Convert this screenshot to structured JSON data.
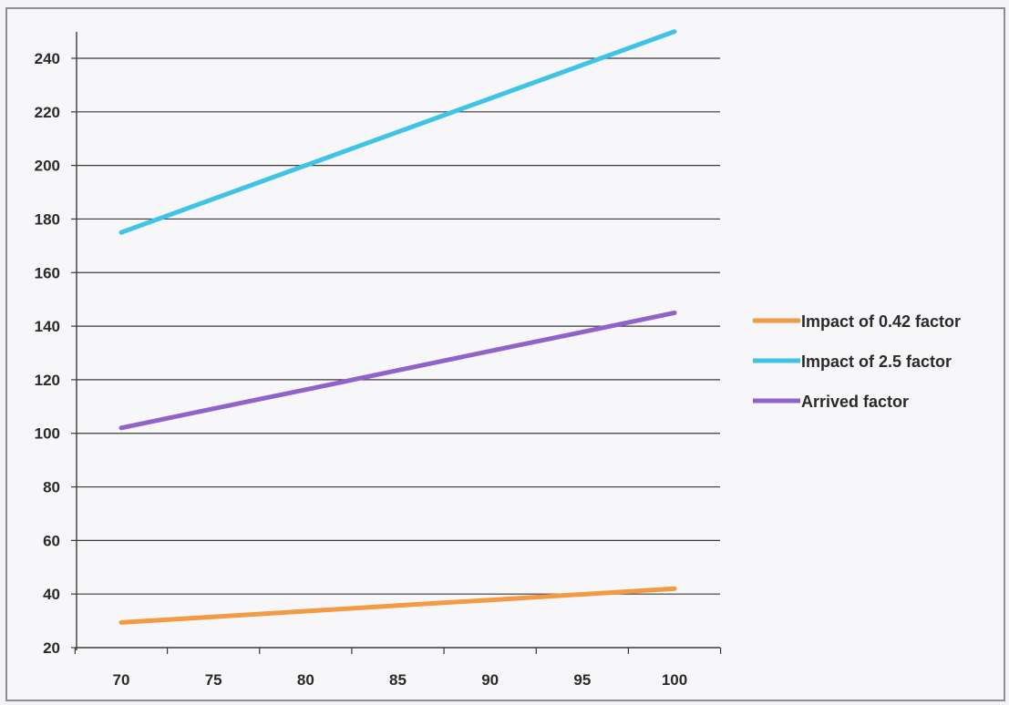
{
  "chart_data": {
    "type": "line",
    "title": "",
    "xlabel": "",
    "ylabel": "",
    "x": [
      70,
      75,
      80,
      85,
      90,
      95,
      100
    ],
    "xlim": [
      70,
      100
    ],
    "ylim": [
      20,
      250
    ],
    "yticks": [
      20,
      40,
      60,
      80,
      100,
      120,
      140,
      160,
      180,
      200,
      220,
      240
    ],
    "grid": "horizontal",
    "legend_position": "right",
    "series": [
      {
        "name": "Impact of 0.42 factor",
        "color": "#f39a45",
        "values": [
          29.4,
          31.5,
          33.6,
          35.7,
          37.8,
          39.9,
          42.0
        ]
      },
      {
        "name": "Impact of 2.5 factor",
        "color": "#3fc3e6",
        "values": [
          175,
          187.5,
          200,
          212.5,
          225,
          237.5,
          250
        ]
      },
      {
        "name": "Arrived factor",
        "color": "#8f63c9",
        "values": [
          102,
          109.2,
          116.3,
          123.5,
          130.7,
          137.8,
          145
        ]
      }
    ]
  }
}
